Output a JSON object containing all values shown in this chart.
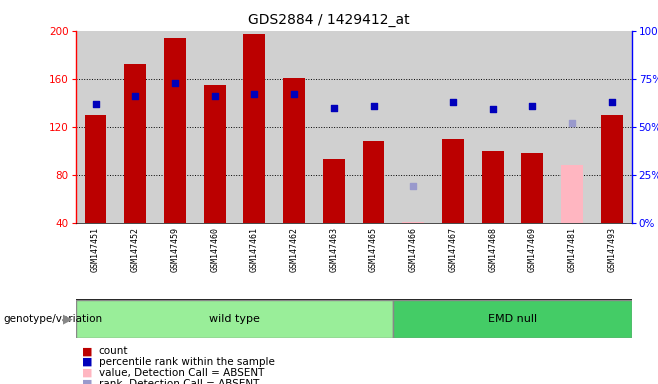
{
  "title": "GDS2884 / 1429412_at",
  "samples": [
    "GSM147451",
    "GSM147452",
    "GSM147459",
    "GSM147460",
    "GSM147461",
    "GSM147462",
    "GSM147463",
    "GSM147465",
    "GSM147466",
    "GSM147467",
    "GSM147468",
    "GSM147469",
    "GSM147481",
    "GSM147493"
  ],
  "counts_present": [
    130,
    172,
    194,
    155,
    197,
    161,
    93,
    108,
    null,
    110,
    100,
    98,
    null,
    130
  ],
  "counts_absent": [
    null,
    null,
    null,
    null,
    null,
    null,
    null,
    null,
    41,
    null,
    null,
    null,
    88,
    null
  ],
  "ranks_present": [
    62,
    66,
    73,
    66,
    67,
    67,
    60,
    61,
    null,
    63,
    59,
    61,
    null,
    63
  ],
  "ranks_absent": [
    null,
    null,
    null,
    null,
    null,
    null,
    null,
    null,
    19,
    null,
    null,
    null,
    52,
    null
  ],
  "wt_count": 8,
  "emd_count": 6,
  "ylim_left": [
    40,
    200
  ],
  "ylim_right": [
    0,
    100
  ],
  "yticks_left": [
    40,
    80,
    120,
    160,
    200
  ],
  "yticks_right": [
    0,
    25,
    50,
    75,
    100
  ],
  "bar_color_present": "#bb0000",
  "bar_color_absent": "#ffb6c1",
  "dot_color_present": "#0000bb",
  "dot_color_absent": "#9999cc",
  "bg_color": "#d0d0d0",
  "wild_type_color": "#99ee99",
  "emd_null_color": "#44cc66",
  "label_count": "count",
  "label_rank": "percentile rank within the sample",
  "label_absent_val": "value, Detection Call = ABSENT",
  "label_absent_rank": "rank, Detection Call = ABSENT"
}
